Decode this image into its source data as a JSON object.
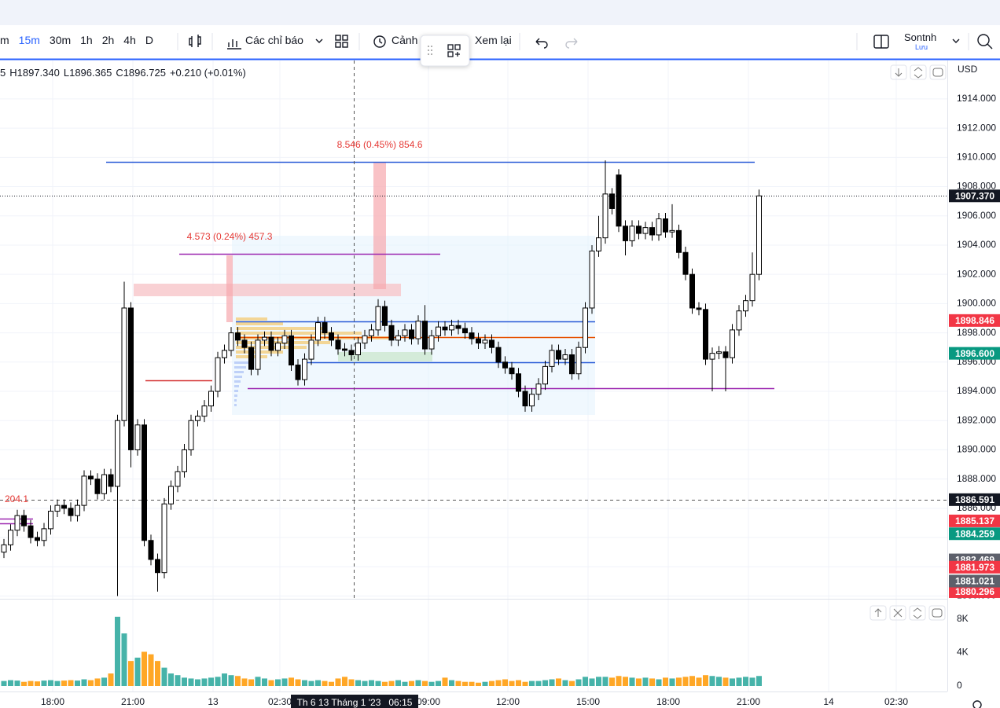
{
  "toolbar": {
    "intervals": [
      "m",
      "15m",
      "30m",
      "1h",
      "2h",
      "4h",
      "D"
    ],
    "indicators": "Các chỉ báo",
    "alert": "Cảnh",
    "replay": "Xem lại",
    "user": "Sontnh",
    "save": "Lưu"
  },
  "currency": "USD",
  "ohlc_legend": [
    "5",
    "H1897.340",
    "L1896.365",
    "C1896.725",
    "+0.210 (+0.01%)"
  ],
  "annotations": [
    "8.546 (0.45%) 854.6",
    "4.573 (0.24%) 457.3",
    "204.1"
  ],
  "chart_data": {
    "type": "candlestick",
    "open": [
      1883,
      1883.5,
      1884.5,
      1885.5,
      1884.8,
      1884,
      1883.8,
      1884.6,
      1885.8,
      1886.2,
      1886,
      1885.5,
      1886.2,
      1888.2,
      1888,
      1887,
      1888.3,
      1887.5,
      1892,
      1899.7,
      1890,
      1891.7,
      1883.8,
      1882.5,
      1881.6,
      1886.3,
      1887.5,
      1888.5,
      1890,
      1892,
      1892.3,
      1893,
      1894,
      1896.3,
      1896.8,
      1898,
      1897.5,
      1897,
      1895.5,
      1897.5,
      1897.7,
      1896.8,
      1897.3,
      1897.8,
      1895.8,
      1894.8,
      1896.2,
      1897.5,
      1898.7,
      1898,
      1897.5,
      1896.9,
      1896.8,
      1896.5,
      1897.3,
      1897.8,
      1898.2,
      1899.8,
      1898.5,
      1897.5,
      1897.8,
      1898.2,
      1897.6,
      1898.8,
      1896.9,
      1897.8,
      1898.4,
      1898.2,
      1898.5,
      1898.3,
      1898,
      1897.6,
      1897.3,
      1897.5,
      1897,
      1896,
      1895.6,
      1895.2,
      1894,
      1893,
      1893.8,
      1894.5,
      1895.7,
      1896.8,
      1896.2,
      1896.5,
      1895.2,
      1897,
      1899.7,
      1903.6,
      1904.5,
      1907.5,
      1908.8,
      1905.3,
      1904.3,
      1905.3,
      1904.8,
      1905.2,
      1904.7,
      1905.8,
      1904.9,
      1905,
      1903.5,
      1902,
      1899.7,
      1899.6,
      1896.2,
      1896.6,
      1896.7,
      1896.3,
      1898.2,
      1899.5,
      1900.2,
      1902
    ],
    "high": [
      1883.9,
      1884.9,
      1885.9,
      1885.9,
      1885.2,
      1884.4,
      1885,
      1886.2,
      1886.6,
      1886.6,
      1886.4,
      1886.6,
      1888.6,
      1888.6,
      1888.4,
      1888.7,
      1888.7,
      1892.4,
      1901.5,
      1900.1,
      1892.1,
      1892.1,
      1884.2,
      1882.9,
      1886.7,
      1887.9,
      1888.9,
      1890.4,
      1892.4,
      1892.7,
      1893.4,
      1894.4,
      1896.7,
      1897.2,
      1898.4,
      1898.4,
      1897.9,
      1897.4,
      1897.9,
      1898.1,
      1898.1,
      1897.7,
      1898.2,
      1898.2,
      1896.2,
      1896.6,
      1897.9,
      1899.1,
      1899.1,
      1898.4,
      1897.9,
      1897.3,
      1897.2,
      1897.7,
      1898.2,
      1898.6,
      1900.3,
      1900.2,
      1898.9,
      1898.2,
      1898.6,
      1898.6,
      1899.2,
      1899.9,
      1898.2,
      1898.8,
      1898.8,
      1898.9,
      1898.9,
      1898.7,
      1898.4,
      1898,
      1897.9,
      1897.9,
      1897.4,
      1896.4,
      1896,
      1895.6,
      1894.4,
      1894.2,
      1894.9,
      1896.1,
      1897.2,
      1897.2,
      1896.9,
      1896.9,
      1897.4,
      1900.1,
      1904,
      1906,
      1909.8,
      1907.9,
      1909.2,
      1905.7,
      1905.7,
      1905.7,
      1905.6,
      1905.6,
      1906.2,
      1906.2,
      1906.8,
      1905.4,
      1903.9,
      1902.4,
      1900.1,
      1900,
      1897,
      1897.1,
      1897.1,
      1898.6,
      1899.9,
      1900.6,
      1903.5,
      1907.8
    ],
    "low": [
      1882.6,
      1883.1,
      1884.1,
      1884.4,
      1883.6,
      1883.4,
      1883.4,
      1884.2,
      1885.4,
      1885.6,
      1885.1,
      1885.1,
      1885.8,
      1887.6,
      1886.6,
      1886.6,
      1887.1,
      1880,
      1891.6,
      1888.8,
      1889.6,
      1883.4,
      1882.1,
      1880.3,
      1881.2,
      1885.9,
      1887.1,
      1888.1,
      1889.6,
      1891.6,
      1891.9,
      1892.6,
      1893.6,
      1895.9,
      1896.4,
      1897.1,
      1896.6,
      1895.1,
      1895.1,
      1897.1,
      1896.4,
      1896.4,
      1896.9,
      1895.4,
      1894.4,
      1894.4,
      1895.8,
      1897.1,
      1897.6,
      1897.1,
      1896.5,
      1896.4,
      1896.1,
      1896.1,
      1896.9,
      1897.4,
      1897.8,
      1898.1,
      1897.1,
      1897.1,
      1897.4,
      1897.2,
      1897.2,
      1896.5,
      1896.5,
      1897.4,
      1897.8,
      1897.8,
      1897.9,
      1897.6,
      1897.2,
      1896.9,
      1896.9,
      1896.6,
      1895.6,
      1895.2,
      1894.8,
      1893.6,
      1892.6,
      1892.6,
      1893.4,
      1894.1,
      1895.3,
      1895.8,
      1895.8,
      1894.8,
      1894.8,
      1896.6,
      1899.3,
      1903.2,
      1904.1,
      1906.1,
      1904.9,
      1903.3,
      1903.9,
      1904.4,
      1904.4,
      1904.3,
      1904.3,
      1904.5,
      1904.5,
      1903.1,
      1901.6,
      1899.3,
      1899.2,
      1895.8,
      1894,
      1896.2,
      1894,
      1895.9,
      1897.8,
      1899.1,
      1899.8,
      1901.6
    ],
    "close": [
      1883.5,
      1884.5,
      1885.5,
      1884.8,
      1884,
      1883.8,
      1884.6,
      1885.8,
      1886.2,
      1886,
      1885.5,
      1886.2,
      1888.2,
      1888,
      1887,
      1888.3,
      1887.5,
      1892,
      1899.7,
      1890,
      1891.7,
      1883.8,
      1882.5,
      1881.6,
      1886.3,
      1887.5,
      1888.5,
      1890,
      1892,
      1892.3,
      1893,
      1894,
      1896.3,
      1896.8,
      1898,
      1897.5,
      1897,
      1895.5,
      1897.5,
      1897.7,
      1896.8,
      1897.3,
      1897.8,
      1895.8,
      1894.8,
      1896.2,
      1897.5,
      1898.7,
      1898,
      1897.5,
      1896.9,
      1896.8,
      1896.5,
      1897.3,
      1897.8,
      1898.2,
      1899.8,
      1898.5,
      1897.5,
      1897.8,
      1898.2,
      1897.6,
      1898.8,
      1896.9,
      1897.8,
      1898.4,
      1898.2,
      1898.5,
      1898.3,
      1898,
      1897.6,
      1897.3,
      1897.5,
      1897,
      1896,
      1895.6,
      1895.2,
      1894,
      1893,
      1893.8,
      1894.5,
      1895.7,
      1896.8,
      1896.2,
      1896.5,
      1895.2,
      1897,
      1899.7,
      1903.6,
      1904.5,
      1907.5,
      1906.5,
      1905.3,
      1904.3,
      1905.3,
      1904.8,
      1905.2,
      1904.7,
      1905.8,
      1904.9,
      1905,
      1903.5,
      1902,
      1899.7,
      1899.6,
      1896.2,
      1896.6,
      1896.7,
      1896.3,
      1898.2,
      1899.5,
      1900.2,
      1902,
      1907.37
    ],
    "up_color": "#ffffff",
    "down_color": "#000000",
    "ylim": [
      1879.81,
      1916.63
    ],
    "yticks": [
      {
        "value": 1880,
        "label": "1880.000"
      },
      {
        "value": 1882,
        "label": "1882.000"
      },
      {
        "value": 1884,
        "label": "1884.000"
      },
      {
        "value": 1886,
        "label": "1886.000"
      },
      {
        "value": 1888,
        "label": "1888.000"
      },
      {
        "value": 1890,
        "label": "1890.000"
      },
      {
        "value": 1892,
        "label": "1892.000"
      },
      {
        "value": 1894,
        "label": "1894.000"
      },
      {
        "value": 1896,
        "label": "1896.000"
      },
      {
        "value": 1898,
        "label": "1898.000"
      },
      {
        "value": 1900,
        "label": "1900.000"
      },
      {
        "value": 1902,
        "label": "1902.000"
      },
      {
        "value": 1904,
        "label": "1904.000"
      },
      {
        "value": 1906,
        "label": "1906.000"
      },
      {
        "value": 1908,
        "label": "1908.000"
      },
      {
        "value": 1910,
        "label": "1910.000"
      },
      {
        "value": 1912,
        "label": "1912.000"
      },
      {
        "value": 1914,
        "label": "1914.000"
      }
    ],
    "grid": true,
    "time_labels": [
      "18:00",
      "21:00",
      "13",
      "02:30",
      "09:00",
      "12:00",
      "15:00",
      "18:00",
      "21:00",
      "14",
      "02:30"
    ],
    "crosshair_time": "Th 6 13 Tháng 1 '23   06:15",
    "price_badges": [
      {
        "value": 1880.296,
        "label": "1880.296",
        "color": "#f23645"
      },
      {
        "value": 1882.469,
        "label": "1882.469",
        "color": "#5d606b"
      },
      {
        "value": 1881.021,
        "label": "1881.021",
        "color": "#5d606b"
      },
      {
        "value": 1881.973,
        "label": "1881.973",
        "color": "#f23645"
      },
      {
        "value": 1884.259,
        "label": "1884.259",
        "color": "#089981"
      },
      {
        "value": 1885.137,
        "label": "1885.137",
        "color": "#f23645"
      },
      {
        "value": 1886.591,
        "label": "1886.591",
        "color": "#131722"
      },
      {
        "value": 1896.6,
        "label": "1896.600",
        "color": "#089981"
      },
      {
        "value": 1898.846,
        "label": "1898.846",
        "color": "#f23645"
      },
      {
        "value": 1907.37,
        "label": "1907.370",
        "color": "#131722"
      }
    ],
    "volume": {
      "values": [
        600,
        700,
        650,
        500,
        600,
        550,
        650,
        700,
        600,
        650,
        700,
        650,
        800,
        700,
        900,
        1000,
        1500,
        8300,
        6300,
        3000,
        3400,
        4100,
        3800,
        3000,
        2200,
        1500,
        1300,
        1000,
        900,
        800,
        900,
        1000,
        1100,
        1500,
        1300,
        1200,
        900,
        800,
        1100,
        900,
        700,
        800,
        900,
        1000,
        800,
        700,
        600,
        700,
        600,
        500,
        900,
        1100,
        800,
        700,
        600,
        700,
        600,
        500,
        600,
        700,
        500,
        600,
        700,
        600,
        500,
        600,
        1000,
        700,
        600,
        500,
        500,
        400,
        500,
        600,
        700,
        800,
        600,
        700,
        500,
        600,
        600,
        700,
        800,
        900,
        700,
        600,
        800,
        1100,
        900,
        1100,
        1100,
        1000,
        1200,
        1100,
        1000,
        900,
        1000,
        900,
        800,
        1000,
        900,
        1000,
        1100,
        1200,
        1000,
        1300,
        1200,
        1100,
        1000,
        900,
        1000,
        1100,
        1000,
        1200
      ],
      "up_color": "#26a69a",
      "down_color": "#ff9800",
      "ylim": [
        0,
        9700
      ],
      "yticks": [
        0,
        {
          "value": 4000,
          "label": "4K"
        },
        {
          "value": 8000,
          "label": "8K"
        }
      ]
    }
  }
}
